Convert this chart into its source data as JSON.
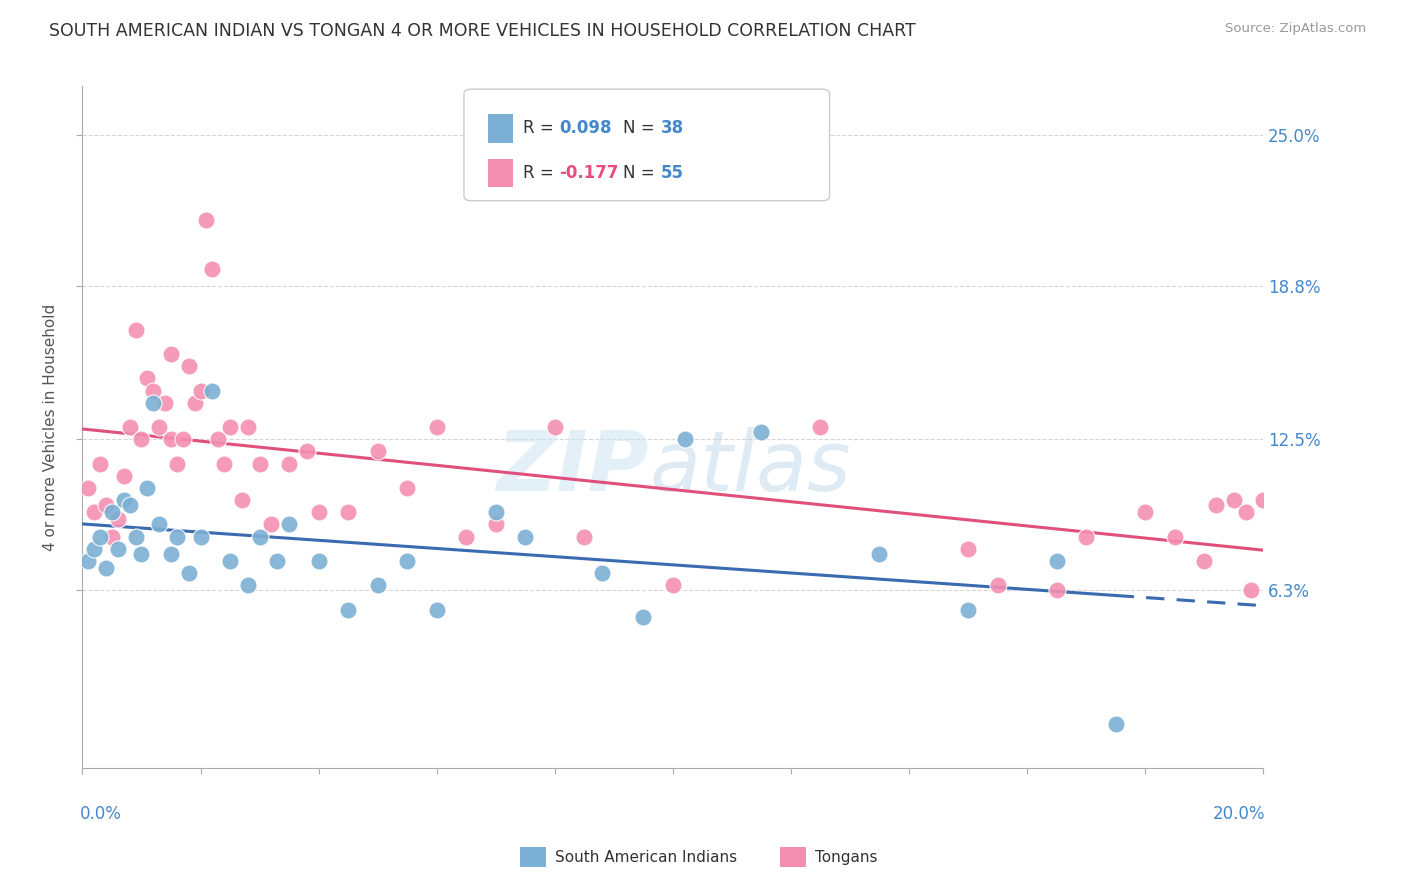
{
  "title": "SOUTH AMERICAN INDIAN VS TONGAN 4 OR MORE VEHICLES IN HOUSEHOLD CORRELATION CHART",
  "source": "Source: ZipAtlas.com",
  "ylabel": "4 or more Vehicles in Household",
  "ytick_values": [
    6.3,
    12.5,
    18.8,
    25.0
  ],
  "xlim": [
    0.0,
    20.0
  ],
  "ylim": [
    -1.0,
    27.0
  ],
  "watermark": "ZIPatlas",
  "blue_color": "#7bafd4",
  "pink_color": "#f48fb1",
  "blue_line_color": "#3a6ab0",
  "pink_line_color": "#e0507a",
  "blue_x": [
    0.1,
    0.2,
    0.3,
    0.4,
    0.5,
    0.6,
    0.7,
    0.8,
    0.9,
    1.0,
    1.1,
    1.2,
    1.3,
    1.5,
    1.6,
    1.8,
    2.0,
    2.2,
    2.5,
    2.8,
    3.0,
    3.3,
    3.5,
    4.0,
    4.5,
    5.0,
    5.5,
    6.0,
    7.0,
    7.5,
    8.8,
    9.5,
    10.2,
    11.5,
    13.5,
    15.0,
    16.5,
    17.5
  ],
  "blue_y": [
    7.5,
    8.0,
    8.5,
    7.2,
    9.5,
    8.0,
    10.0,
    9.8,
    8.5,
    7.8,
    10.5,
    14.0,
    9.0,
    7.8,
    8.5,
    7.0,
    8.5,
    14.5,
    7.5,
    6.5,
    8.5,
    7.5,
    9.0,
    7.5,
    5.5,
    6.5,
    7.5,
    5.5,
    9.5,
    8.5,
    7.0,
    5.2,
    12.5,
    12.8,
    7.8,
    5.5,
    7.5,
    0.8
  ],
  "pink_x": [
    0.1,
    0.2,
    0.3,
    0.4,
    0.5,
    0.6,
    0.7,
    0.8,
    0.9,
    1.0,
    1.1,
    1.2,
    1.3,
    1.4,
    1.5,
    1.5,
    1.6,
    1.7,
    1.8,
    1.9,
    2.0,
    2.1,
    2.2,
    2.3,
    2.4,
    2.5,
    2.7,
    2.8,
    3.0,
    3.2,
    3.5,
    3.8,
    4.0,
    4.5,
    5.0,
    5.5,
    6.0,
    6.5,
    7.0,
    8.0,
    8.5,
    10.0,
    12.5,
    15.0,
    15.5,
    16.5,
    17.0,
    18.0,
    18.5,
    19.0,
    19.2,
    19.5,
    19.7,
    19.8,
    20.0
  ],
  "pink_y": [
    10.5,
    9.5,
    11.5,
    9.8,
    8.5,
    9.2,
    11.0,
    13.0,
    17.0,
    12.5,
    15.0,
    14.5,
    13.0,
    14.0,
    12.5,
    16.0,
    11.5,
    12.5,
    15.5,
    14.0,
    14.5,
    21.5,
    19.5,
    12.5,
    11.5,
    13.0,
    10.0,
    13.0,
    11.5,
    9.0,
    11.5,
    12.0,
    9.5,
    9.5,
    12.0,
    10.5,
    13.0,
    8.5,
    9.0,
    13.0,
    8.5,
    6.5,
    13.0,
    8.0,
    6.5,
    6.3,
    8.5,
    9.5,
    8.5,
    7.5,
    9.8,
    10.0,
    9.5,
    6.3,
    10.0
  ]
}
